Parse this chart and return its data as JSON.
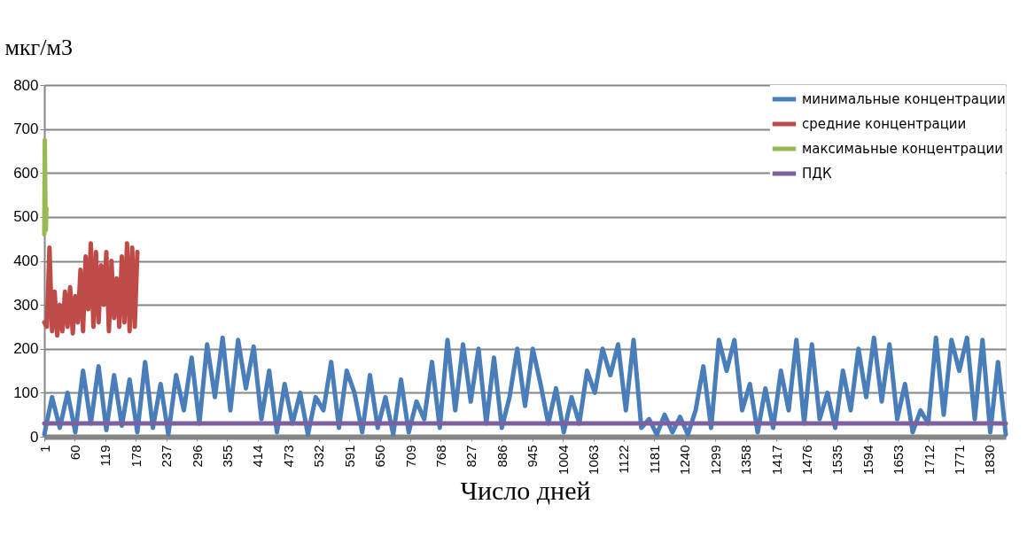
{
  "chart_data": {
    "type": "line",
    "ylabel": "мкг/м3",
    "xlabel": "Число дней",
    "xlim": [
      1,
      1861
    ],
    "xticks": [
      1,
      60,
      119,
      178,
      237,
      296,
      355,
      414,
      473,
      532,
      591,
      650,
      709,
      768,
      827,
      886,
      945,
      1004,
      1063,
      1122,
      1181,
      1240,
      1299,
      1358,
      1417,
      1476,
      1535,
      1594,
      1653,
      1712,
      1771,
      1830
    ],
    "ylim": [
      0,
      800
    ],
    "yticks": [
      0,
      100,
      200,
      300,
      400,
      500,
      600,
      700,
      800
    ],
    "grid": "y",
    "legend": "top right",
    "marker": "none",
    "line_style": "solid",
    "series": [
      {
        "name": "минимальные концентрации",
        "color": "#4a7ebb",
        "x": [
          1,
          16,
          31,
          46,
          61,
          76,
          91,
          106,
          121,
          136,
          151,
          166,
          181,
          196,
          211,
          226,
          241,
          256,
          271,
          286,
          301,
          316,
          331,
          346,
          361,
          376,
          391,
          406,
          421,
          436,
          451,
          466,
          481,
          496,
          511,
          526,
          541,
          556,
          571,
          586,
          601,
          616,
          631,
          646,
          661,
          676,
          691,
          706,
          721,
          736,
          751,
          766,
          781,
          796,
          811,
          826,
          841,
          856,
          871,
          886,
          901,
          916,
          931,
          946,
          961,
          976,
          991,
          1006,
          1021,
          1036,
          1051,
          1066,
          1081,
          1096,
          1111,
          1126,
          1141,
          1156,
          1171,
          1186,
          1201,
          1216,
          1231,
          1246,
          1261,
          1276,
          1291,
          1306,
          1321,
          1336,
          1351,
          1366,
          1381,
          1396,
          1411,
          1426,
          1441,
          1456,
          1471,
          1486,
          1501,
          1516,
          1531,
          1546,
          1561,
          1576,
          1591,
          1606,
          1621,
          1636,
          1651,
          1666,
          1681,
          1696,
          1711,
          1726,
          1741,
          1756,
          1771,
          1786,
          1801,
          1816,
          1831,
          1846,
          1861
        ],
        "values": [
          5,
          90,
          20,
          100,
          10,
          150,
          30,
          160,
          15,
          140,
          25,
          130,
          10,
          170,
          20,
          120,
          5,
          140,
          60,
          180,
          30,
          210,
          90,
          225,
          60,
          220,
          110,
          205,
          40,
          150,
          10,
          120,
          30,
          100,
          5,
          90,
          60,
          170,
          20,
          150,
          100,
          10,
          140,
          20,
          90,
          5,
          130,
          10,
          80,
          40,
          170,
          20,
          220,
          60,
          210,
          80,
          200,
          30,
          180,
          20,
          90,
          200,
          70,
          200,
          120,
          30,
          110,
          10,
          90,
          30,
          150,
          100,
          200,
          140,
          210,
          60,
          220,
          20,
          40,
          5,
          50,
          10,
          45,
          5,
          60,
          160,
          20,
          220,
          150,
          220,
          60,
          120,
          10,
          110,
          20,
          150,
          60,
          220,
          30,
          210,
          40,
          100,
          20,
          150,
          60,
          200,
          90,
          225,
          80,
          210,
          40,
          120,
          10,
          60,
          30,
          225,
          50,
          220,
          150,
          225,
          40,
          220,
          10,
          170,
          5
        ]
      },
      {
        "name": "средние концентрации",
        "color": "#be4b48",
        "x": [
          1,
          6,
          11,
          16,
          21,
          26,
          31,
          36,
          41,
          46,
          51,
          56,
          61,
          66,
          71,
          76,
          81,
          86,
          91,
          96,
          101,
          106,
          111,
          116,
          121,
          126,
          131,
          136,
          141,
          146,
          151,
          156,
          161,
          166,
          171,
          176,
          181
        ],
        "values": [
          260,
          250,
          430,
          240,
          330,
          230,
          300,
          240,
          330,
          250,
          340,
          235,
          320,
          260,
          380,
          240,
          410,
          290,
          440,
          250,
          420,
          260,
          390,
          300,
          420,
          240,
          400,
          270,
          360,
          250,
          410,
          260,
          440,
          240,
          430,
          250,
          420
        ]
      },
      {
        "name": "максимаьные концентрации",
        "color": "#98b954",
        "x": [
          1,
          2,
          3,
          4,
          5
        ],
        "values": [
          460,
          675,
          530,
          470,
          520
        ]
      },
      {
        "name": "ПДК",
        "color": "#7d60a0",
        "x": [
          1,
          1861
        ],
        "values": [
          30,
          30
        ]
      }
    ]
  }
}
